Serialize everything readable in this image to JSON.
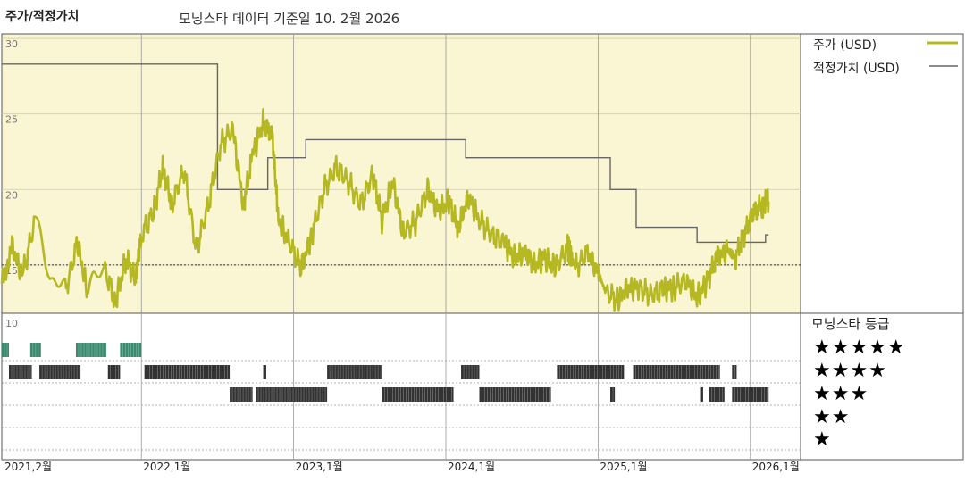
{
  "header": {
    "title": "주가/적정가치",
    "date_note": "모닝스타 데이터 기준일 10. 2월 2026"
  },
  "legend": {
    "price": "주가 (USD)",
    "fair": "적정가치 (USD)",
    "price_color": "#b5b823",
    "fair_color": "#666666"
  },
  "rating_title": "모닝스타 등급",
  "stars": [
    "★★★★★",
    "★★★★",
    "★★★",
    "★★",
    "★"
  ],
  "colors": {
    "band_bg": "#faf5d2",
    "five_star": "#3a8a70",
    "bar": "#333333"
  },
  "chart_data": {
    "type": "line",
    "x_tick_labels": [
      "2021,2월",
      "2022,1월",
      "2023,1월",
      "2024,1월",
      "2025,1월",
      "2026,1월"
    ],
    "x_tick_dates": [
      2021.083,
      2022.0,
      2023.0,
      2024.0,
      2025.0,
      2026.0
    ],
    "xlim": [
      2021.083,
      2026.33
    ],
    "y_tick_labels": [
      "30",
      "25",
      "20",
      "15"
    ],
    "y_ticks": [
      30,
      25,
      20,
      15
    ],
    "ylim": [
      11.8,
      30.3
    ],
    "rating_axis_label": "10",
    "price": {
      "name": "주가 (USD)",
      "t": [
        2021.083,
        2021.15,
        2021.22,
        2021.3,
        2021.4,
        2021.5,
        2021.58,
        2021.65,
        2021.75,
        2021.83,
        2021.9,
        2021.96,
        2022.0,
        2022.08,
        2022.14,
        2022.2,
        2022.28,
        2022.36,
        2022.44,
        2022.52,
        2022.6,
        2022.67,
        2022.73,
        2022.8,
        2022.86,
        2022.9,
        2022.97,
        2023.05,
        2023.12,
        2023.2,
        2023.28,
        2023.36,
        2023.44,
        2023.52,
        2023.58,
        2023.65,
        2023.72,
        2023.8,
        2023.88,
        2023.95,
        2024.02,
        2024.08,
        2024.15,
        2024.22,
        2024.3,
        2024.38,
        2024.45,
        2024.52,
        2024.58,
        2024.65,
        2024.72,
        2024.8,
        2024.85,
        2024.93,
        2025.0,
        2025.05,
        2025.13,
        2025.2,
        2025.27,
        2025.35,
        2025.43,
        2025.5,
        2025.58,
        2025.65,
        2025.72,
        2025.78,
        2025.85,
        2025.9,
        2025.96,
        2026.02,
        2026.08,
        2026.12
      ],
      "values": [
        13.8,
        16.2,
        14.3,
        17.9,
        14.5,
        13.2,
        16.5,
        13.0,
        15.0,
        12.5,
        15.5,
        14.0,
        17.0,
        18.5,
        21.5,
        19.0,
        21.3,
        16.0,
        19.0,
        23.0,
        24.0,
        19.0,
        22.3,
        24.5,
        23.5,
        18.0,
        16.5,
        14.8,
        17.0,
        20.0,
        21.5,
        20.5,
        19.0,
        21.0,
        18.0,
        20.5,
        17.2,
        17.8,
        20.0,
        18.6,
        19.2,
        17.5,
        19.5,
        18.0,
        17.0,
        16.5,
        15.5,
        15.8,
        15.0,
        15.5,
        14.8,
        16.2,
        14.8,
        15.8,
        14.5,
        13.2,
        12.7,
        13.5,
        13.5,
        13.0,
        13.4,
        13.5,
        14.0,
        12.8,
        14.0,
        15.5,
        16.0,
        15.5,
        17.0,
        18.5,
        19.0,
        19.2
      ]
    },
    "fair_value": {
      "name": "적정가치 (USD)",
      "steps": [
        [
          2021.083,
          28.3
        ],
        [
          2022.5,
          20.0
        ],
        [
          2022.83,
          22.1
        ],
        [
          2023.08,
          23.3
        ],
        [
          2024.13,
          22.1
        ],
        [
          2025.08,
          20.0
        ],
        [
          2025.25,
          17.5
        ],
        [
          2025.65,
          16.5
        ],
        [
          2026.1,
          17.0
        ],
        [
          2026.12,
          17.0
        ]
      ]
    },
    "reference_line": 15.0,
    "ratings": [
      {
        "stars": 5,
        "ranges": [
          [
            2021.083,
            2021.13
          ],
          [
            2021.27,
            2021.34
          ],
          [
            2021.57,
            2021.77
          ],
          [
            2021.86,
            2022.0
          ]
        ]
      },
      {
        "stars": 4,
        "ranges": [
          [
            2021.13,
            2021.28
          ],
          [
            2021.33,
            2021.6
          ],
          [
            2021.78,
            2021.86
          ],
          [
            2022.02,
            2022.58
          ],
          [
            2022.8,
            2022.82
          ],
          [
            2023.22,
            2023.58
          ],
          [
            2024.1,
            2024.22
          ],
          [
            2024.73,
            2025.17
          ],
          [
            2025.23,
            2025.8
          ],
          [
            2025.88,
            2025.91
          ]
        ]
      },
      {
        "stars": 3,
        "ranges": [
          [
            2022.58,
            2022.73
          ],
          [
            2022.75,
            2023.22
          ],
          [
            2023.58,
            2024.05
          ],
          [
            2024.22,
            2024.69
          ],
          [
            2025.08,
            2025.11
          ],
          [
            2025.67,
            2025.69
          ],
          [
            2025.73,
            2025.83
          ],
          [
            2025.88,
            2026.12
          ]
        ]
      }
    ]
  }
}
